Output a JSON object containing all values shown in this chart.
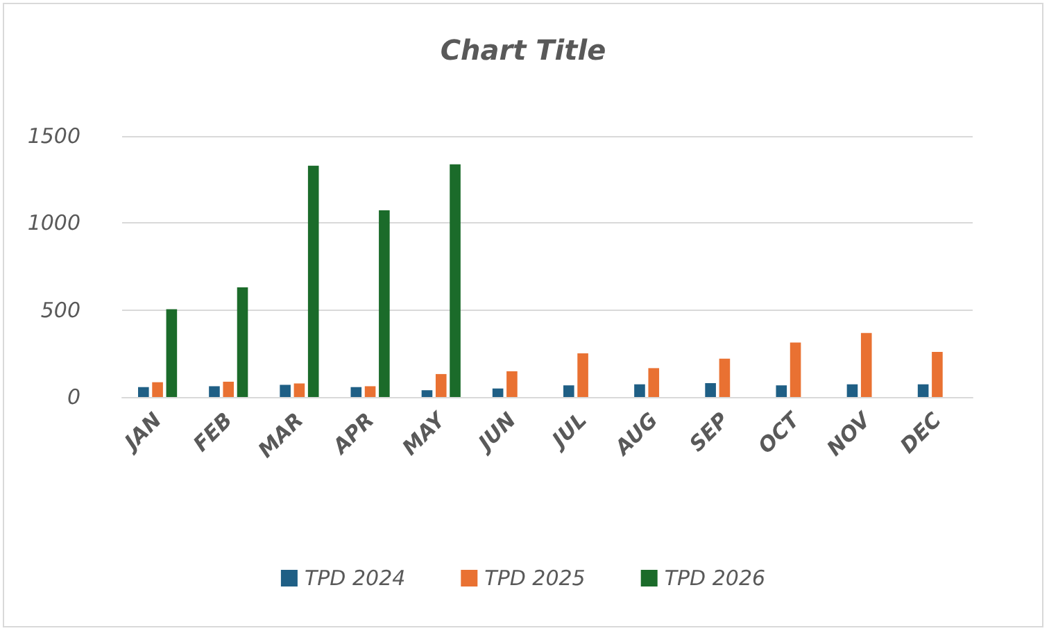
{
  "chart_data": {
    "type": "bar",
    "title": "Chart Title",
    "categories": [
      "JAN",
      "FEB",
      "MAR",
      "APR",
      "MAY",
      "JUN",
      "JUL",
      "AUG",
      "SEP",
      "OCT",
      "NOV",
      "DEC"
    ],
    "series": [
      {
        "name": "TPD 2024",
        "color": "#1f5f85",
        "values": [
          57,
          62,
          70,
          57,
          39,
          49,
          67,
          73,
          80,
          67,
          73,
          73
        ]
      },
      {
        "name": "TPD 2025",
        "color": "#e97132",
        "values": [
          85,
          88,
          78,
          62,
          132,
          148,
          251,
          166,
          220,
          313,
          368,
          259
        ]
      },
      {
        "name": "TPD 2026",
        "color": "#1b6b2a",
        "values": [
          505,
          630,
          1329,
          1073,
          1337,
          null,
          null,
          null,
          null,
          null,
          null,
          null
        ]
      }
    ],
    "ylim": [
      0,
      1500
    ],
    "yticks": [
      0,
      500,
      1000,
      1500
    ],
    "grid": "y",
    "legend": "bottom"
  }
}
